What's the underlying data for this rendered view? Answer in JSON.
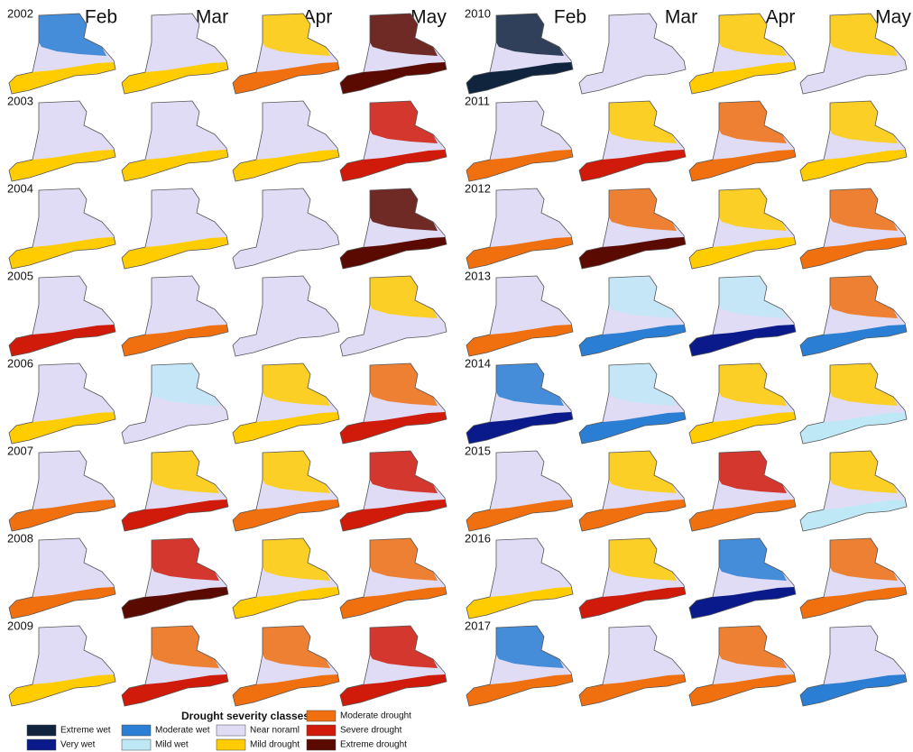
{
  "panels": [
    {
      "years": [
        "2002",
        "2003",
        "2004",
        "2005",
        "2006",
        "2007",
        "2008",
        "2009"
      ],
      "months": [
        "Feb",
        "Mar",
        "Apr",
        "May"
      ]
    },
    {
      "years": [
        "2010",
        "2011",
        "2012",
        "2013",
        "2014",
        "2015",
        "2016",
        "2017"
      ],
      "months": [
        "Feb",
        "Mar",
        "Apr",
        "May"
      ]
    }
  ],
  "legend": {
    "title": "Drought severity classes",
    "classes": [
      {
        "label": "Extreme wet",
        "color": "#10243e"
      },
      {
        "label": "Very wet",
        "color": "#0a1a8a"
      },
      {
        "label": "Moderate wet",
        "color": "#2a7fd4"
      },
      {
        "label": "Mild wet",
        "color": "#bfe8f7"
      },
      {
        "label": "Near noraml",
        "color": "#e0dcf5"
      },
      {
        "label": "Mild drought",
        "color": "#ffcc00"
      },
      {
        "label": "Moderate drought",
        "color": "#f07010"
      },
      {
        "label": "Severe drought",
        "color": "#d01a0a"
      },
      {
        "label": "Extreme drought",
        "color": "#5a0a00"
      }
    ]
  }
}
